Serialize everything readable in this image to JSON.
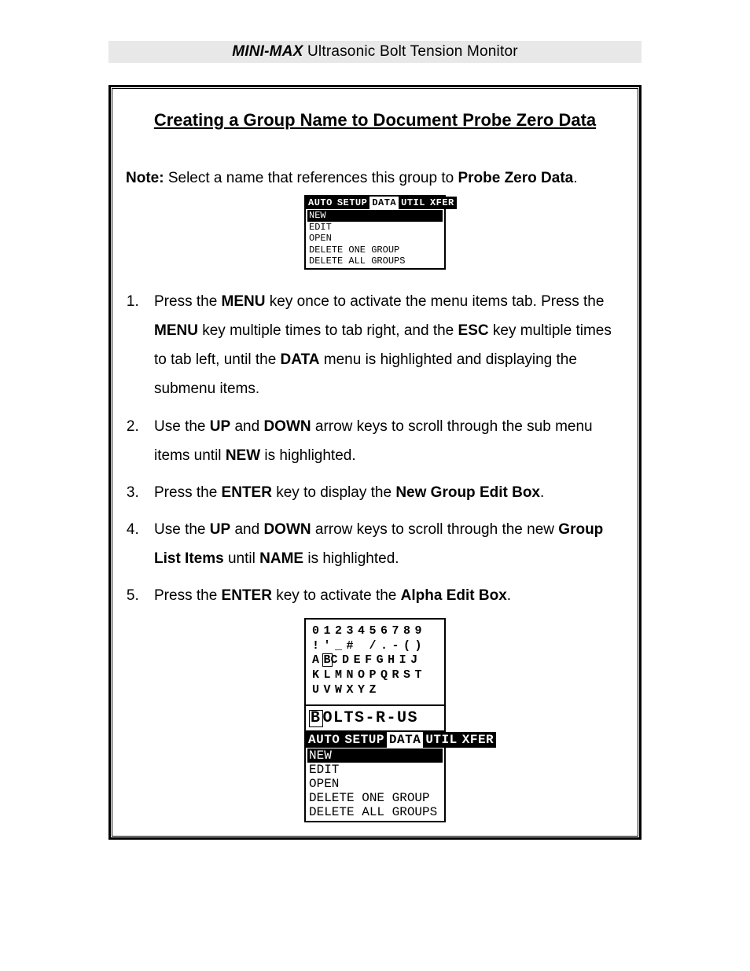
{
  "header": {
    "brand": "MINI-MAX",
    "product": " Ultrasonic Bolt Tension Monitor"
  },
  "section_title": "Creating a Group Name to Document Probe Zero Data",
  "note": {
    "label": "Note:",
    "body": "  Select a name that references this group to ",
    "target": "Probe Zero Data",
    "tail": "."
  },
  "menu1": {
    "tabs": [
      "AUTO",
      "SETUP",
      "DATA",
      "UTIL",
      "XFER"
    ],
    "tabs_inverted": [
      true,
      true,
      false,
      true,
      true
    ],
    "items": [
      "NEW",
      "EDIT",
      "OPEN",
      "DELETE ONE GROUP",
      "DELETE ALL GROUPS"
    ],
    "selected_index": 0
  },
  "steps": [
    {
      "parts": [
        {
          "t": "Press the ",
          "b": false
        },
        {
          "t": "MENU",
          "b": true
        },
        {
          "t": " key once to activate the menu items tab.  Press the ",
          "b": false
        },
        {
          "t": "MENU",
          "b": true
        },
        {
          "t": " key multiple times to tab right, and the ",
          "b": false
        },
        {
          "t": "ESC",
          "b": true
        },
        {
          "t": " key multiple times to tab left, until the ",
          "b": false
        },
        {
          "t": "DATA",
          "b": true
        },
        {
          "t": " menu is highlighted and displaying the submenu items.",
          "b": false
        }
      ]
    },
    {
      "parts": [
        {
          "t": " Use the ",
          "b": false
        },
        {
          "t": "UP",
          "b": true
        },
        {
          "t": " and ",
          "b": false
        },
        {
          "t": "DOWN",
          "b": true
        },
        {
          "t": " arrow keys to scroll through the sub menu items until ",
          "b": false
        },
        {
          "t": "NEW",
          "b": true
        },
        {
          "t": " is highlighted.",
          "b": false
        }
      ]
    },
    {
      "parts": [
        {
          "t": " Press the ",
          "b": false
        },
        {
          "t": "ENTER",
          "b": true
        },
        {
          "t": " key to display the ",
          "b": false
        },
        {
          "t": "New Group Edit Box",
          "b": true
        },
        {
          "t": ".",
          "b": false
        }
      ]
    },
    {
      "parts": [
        {
          "t": "Use the ",
          "b": false
        },
        {
          "t": "UP",
          "b": true
        },
        {
          "t": " and ",
          "b": false
        },
        {
          "t": "DOWN",
          "b": true
        },
        {
          "t": " arrow keys to scroll through the new ",
          "b": false
        },
        {
          "t": "Group List Items",
          "b": true
        },
        {
          "t": " until ",
          "b": false
        },
        {
          "t": "NAME",
          "b": true
        },
        {
          "t": " is highlighted.",
          "b": false
        }
      ]
    },
    {
      "parts": [
        {
          "t": "Press the ",
          "b": false
        },
        {
          "t": "ENTER",
          "b": true
        },
        {
          "t": " key to activate the ",
          "b": false
        },
        {
          "t": "Alpha Edit Box",
          "b": true
        },
        {
          "t": ".",
          "b": false
        }
      ]
    }
  ],
  "alpha": {
    "rows": [
      "0123456789",
      "!'_# /.-()",
      "ABCDEFGHIJ",
      "KLMNOPQRST",
      "UVWXYZ"
    ],
    "boxed_row": 2,
    "boxed_col": 1,
    "name_before": "",
    "name_cursor": "B",
    "name_after": "OLTS-R-US"
  },
  "menu2": {
    "tabs": [
      "AUTO",
      "SETUP",
      "DATA",
      "UTIL",
      "XFER"
    ],
    "tabs_inverted": [
      true,
      true,
      false,
      true,
      true
    ],
    "items": [
      "NEW",
      "EDIT",
      "OPEN",
      "DELETE ONE GROUP",
      "DELETE ALL GROUPS"
    ],
    "selected_index": 0
  },
  "colors": {
    "header_bg": "#e8e8e8",
    "text": "#000000",
    "bg": "#ffffff"
  }
}
